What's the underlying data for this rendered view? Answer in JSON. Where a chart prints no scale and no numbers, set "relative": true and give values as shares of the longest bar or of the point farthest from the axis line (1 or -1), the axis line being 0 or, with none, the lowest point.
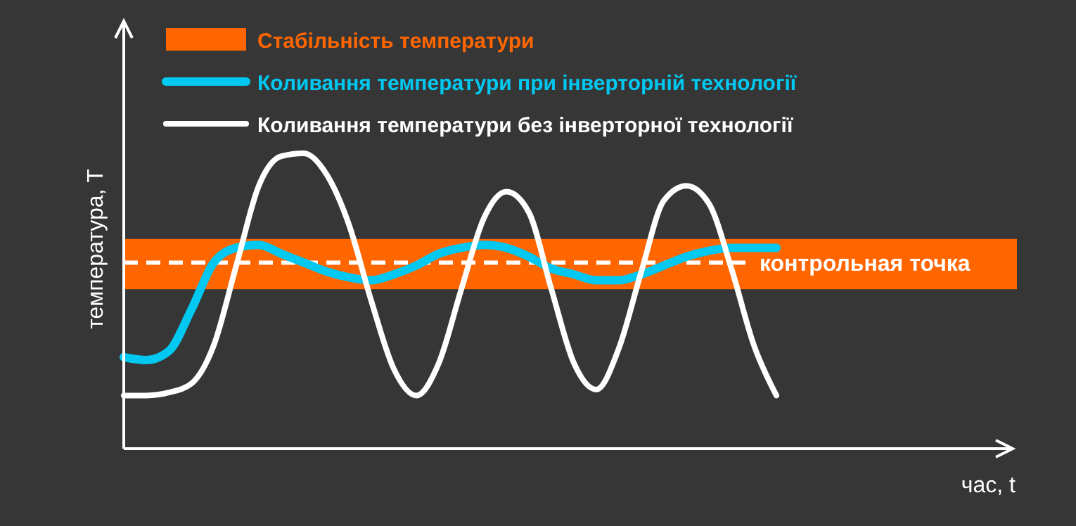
{
  "chart_data": {
    "type": "line",
    "relative": true,
    "xlabel": "час, t",
    "ylabel": "температура, T",
    "legend": "top left",
    "categories": [
      null,
      null,
      null,
      null,
      null,
      null,
      null,
      null,
      null,
      null,
      null,
      null,
      null,
      null,
      null,
      null,
      null,
      null,
      null,
      null,
      null,
      null,
      null,
      null,
      null,
      null,
      null,
      null,
      null,
      null,
      null,
      null,
      null,
      null,
      null,
      null,
      null,
      null,
      null,
      null
    ],
    "bands": [
      {
        "axis": "y",
        "from": 0.54,
        "to": 0.71,
        "label": "Стабільність температури",
        "color": "#ff6600"
      }
    ],
    "ref_lines": [
      {
        "axis": "y",
        "value": 0.63,
        "label": "контрольная точка",
        "color": "#ffffff",
        "line_style": "dashed"
      }
    ],
    "series": [
      {
        "name": "Коливання температури при інверторній технології",
        "color": "#00c8f0",
        "values": [
          0.31,
          0.3,
          0.33,
          0.47,
          0.63,
          0.68,
          0.69,
          0.66,
          0.63,
          0.6,
          0.58,
          0.57,
          0.59,
          0.62,
          0.66,
          0.68,
          0.69,
          0.68,
          0.65,
          0.61,
          0.59,
          0.57,
          0.57,
          0.59,
          0.62,
          0.65,
          0.67,
          0.68,
          0.68,
          0.68,
          null,
          null,
          null,
          null,
          null,
          null,
          null,
          null,
          null,
          null
        ]
      },
      {
        "name": "Коливання температури без інверторної технології",
        "color": "#ffffff",
        "values": [
          0.18,
          0.18,
          0.19,
          0.22,
          0.35,
          0.62,
          0.89,
          0.99,
          1.0,
          0.93,
          0.76,
          0.5,
          0.27,
          0.18,
          0.29,
          0.54,
          0.78,
          0.87,
          0.8,
          0.54,
          0.29,
          0.2,
          0.34,
          0.6,
          0.84,
          0.89,
          0.83,
          0.61,
          0.35,
          0.18,
          null,
          null,
          null,
          null,
          null,
          null,
          null,
          null,
          null,
          null
        ]
      }
    ]
  }
}
